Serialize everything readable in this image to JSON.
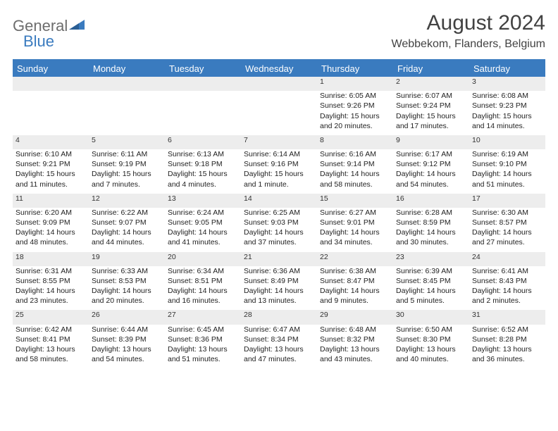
{
  "brand": {
    "part1": "General",
    "part2": "Blue"
  },
  "title": "August 2024",
  "location": "Webbekom, Flanders, Belgium",
  "colors": {
    "header_bg": "#3a7bbf",
    "header_text": "#ffffff",
    "daynum_bg": "#ededed",
    "text": "#222222",
    "logo_gray": "#6d6d6d",
    "logo_blue": "#3a7bbf"
  },
  "weekdays": [
    "Sunday",
    "Monday",
    "Tuesday",
    "Wednesday",
    "Thursday",
    "Friday",
    "Saturday"
  ],
  "weeks": [
    [
      null,
      null,
      null,
      null,
      {
        "d": "1",
        "sunrise": "6:05 AM",
        "sunset": "9:26 PM",
        "daylight": "15 hours and 20 minutes."
      },
      {
        "d": "2",
        "sunrise": "6:07 AM",
        "sunset": "9:24 PM",
        "daylight": "15 hours and 17 minutes."
      },
      {
        "d": "3",
        "sunrise": "6:08 AM",
        "sunset": "9:23 PM",
        "daylight": "15 hours and 14 minutes."
      }
    ],
    [
      {
        "d": "4",
        "sunrise": "6:10 AM",
        "sunset": "9:21 PM",
        "daylight": "15 hours and 11 minutes."
      },
      {
        "d": "5",
        "sunrise": "6:11 AM",
        "sunset": "9:19 PM",
        "daylight": "15 hours and 7 minutes."
      },
      {
        "d": "6",
        "sunrise": "6:13 AM",
        "sunset": "9:18 PM",
        "daylight": "15 hours and 4 minutes."
      },
      {
        "d": "7",
        "sunrise": "6:14 AM",
        "sunset": "9:16 PM",
        "daylight": "15 hours and 1 minute."
      },
      {
        "d": "8",
        "sunrise": "6:16 AM",
        "sunset": "9:14 PM",
        "daylight": "14 hours and 58 minutes."
      },
      {
        "d": "9",
        "sunrise": "6:17 AM",
        "sunset": "9:12 PM",
        "daylight": "14 hours and 54 minutes."
      },
      {
        "d": "10",
        "sunrise": "6:19 AM",
        "sunset": "9:10 PM",
        "daylight": "14 hours and 51 minutes."
      }
    ],
    [
      {
        "d": "11",
        "sunrise": "6:20 AM",
        "sunset": "9:09 PM",
        "daylight": "14 hours and 48 minutes."
      },
      {
        "d": "12",
        "sunrise": "6:22 AM",
        "sunset": "9:07 PM",
        "daylight": "14 hours and 44 minutes."
      },
      {
        "d": "13",
        "sunrise": "6:24 AM",
        "sunset": "9:05 PM",
        "daylight": "14 hours and 41 minutes."
      },
      {
        "d": "14",
        "sunrise": "6:25 AM",
        "sunset": "9:03 PM",
        "daylight": "14 hours and 37 minutes."
      },
      {
        "d": "15",
        "sunrise": "6:27 AM",
        "sunset": "9:01 PM",
        "daylight": "14 hours and 34 minutes."
      },
      {
        "d": "16",
        "sunrise": "6:28 AM",
        "sunset": "8:59 PM",
        "daylight": "14 hours and 30 minutes."
      },
      {
        "d": "17",
        "sunrise": "6:30 AM",
        "sunset": "8:57 PM",
        "daylight": "14 hours and 27 minutes."
      }
    ],
    [
      {
        "d": "18",
        "sunrise": "6:31 AM",
        "sunset": "8:55 PM",
        "daylight": "14 hours and 23 minutes."
      },
      {
        "d": "19",
        "sunrise": "6:33 AM",
        "sunset": "8:53 PM",
        "daylight": "14 hours and 20 minutes."
      },
      {
        "d": "20",
        "sunrise": "6:34 AM",
        "sunset": "8:51 PM",
        "daylight": "14 hours and 16 minutes."
      },
      {
        "d": "21",
        "sunrise": "6:36 AM",
        "sunset": "8:49 PM",
        "daylight": "14 hours and 13 minutes."
      },
      {
        "d": "22",
        "sunrise": "6:38 AM",
        "sunset": "8:47 PM",
        "daylight": "14 hours and 9 minutes."
      },
      {
        "d": "23",
        "sunrise": "6:39 AM",
        "sunset": "8:45 PM",
        "daylight": "14 hours and 5 minutes."
      },
      {
        "d": "24",
        "sunrise": "6:41 AM",
        "sunset": "8:43 PM",
        "daylight": "14 hours and 2 minutes."
      }
    ],
    [
      {
        "d": "25",
        "sunrise": "6:42 AM",
        "sunset": "8:41 PM",
        "daylight": "13 hours and 58 minutes."
      },
      {
        "d": "26",
        "sunrise": "6:44 AM",
        "sunset": "8:39 PM",
        "daylight": "13 hours and 54 minutes."
      },
      {
        "d": "27",
        "sunrise": "6:45 AM",
        "sunset": "8:36 PM",
        "daylight": "13 hours and 51 minutes."
      },
      {
        "d": "28",
        "sunrise": "6:47 AM",
        "sunset": "8:34 PM",
        "daylight": "13 hours and 47 minutes."
      },
      {
        "d": "29",
        "sunrise": "6:48 AM",
        "sunset": "8:32 PM",
        "daylight": "13 hours and 43 minutes."
      },
      {
        "d": "30",
        "sunrise": "6:50 AM",
        "sunset": "8:30 PM",
        "daylight": "13 hours and 40 minutes."
      },
      {
        "d": "31",
        "sunrise": "6:52 AM",
        "sunset": "8:28 PM",
        "daylight": "13 hours and 36 minutes."
      }
    ]
  ],
  "labels": {
    "sunrise": "Sunrise:",
    "sunset": "Sunset:",
    "daylight": "Daylight:"
  }
}
